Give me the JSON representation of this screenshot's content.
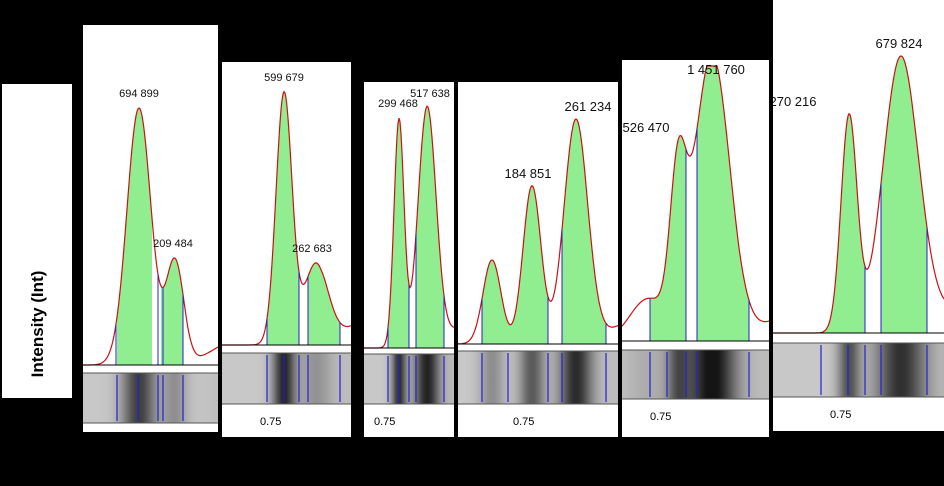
{
  "y_axis_label": "Intensity (Int)",
  "x_tick_label": "0.75",
  "colors": {
    "fill": "#90EE90",
    "curve": "#cc1111",
    "divider": "#2222cc",
    "background": "#000000"
  },
  "chart_data": [
    {
      "type": "area",
      "peaks": [
        {
          "label": "694 899",
          "value": 694899
        },
        {
          "label": "209 484",
          "value": 209484
        }
      ]
    },
    {
      "type": "area",
      "peaks": [
        {
          "label": "599 679",
          "value": 599679
        },
        {
          "label": "262 683",
          "value": 262683
        }
      ]
    },
    {
      "type": "area",
      "peaks": [
        {
          "label": "299 468",
          "value": 299468
        },
        {
          "label": "517 638",
          "value": 517638
        }
      ]
    },
    {
      "type": "area",
      "peaks": [
        {
          "label": "184 851",
          "value": 184851
        },
        {
          "label": "261 234",
          "value": 261234
        }
      ]
    },
    {
      "type": "area",
      "peaks": [
        {
          "label": "526 470",
          "value": 526470
        },
        {
          "label": "1 451 760",
          "value": 1451760
        }
      ]
    },
    {
      "type": "area",
      "peaks": [
        {
          "label": "270 216",
          "value": 270216
        },
        {
          "label": "679 824",
          "value": 679824
        }
      ]
    }
  ]
}
